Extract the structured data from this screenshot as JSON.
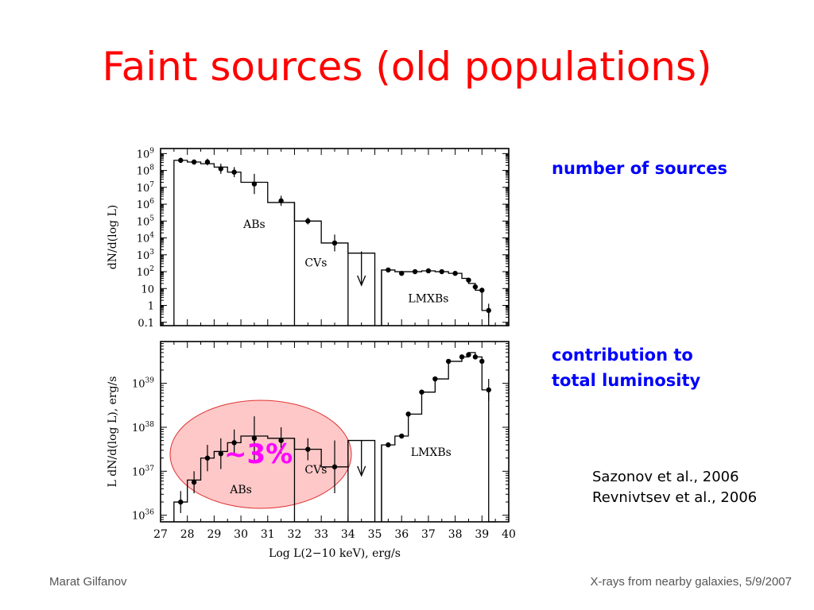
{
  "slide": {
    "title": "Faint sources (old populations)",
    "annotation_top": "number of sources",
    "annotation_bottom_line1": "contribution to",
    "annotation_bottom_line2": "total luminosity",
    "ref_line1": "Sazonov et al., 2006",
    "ref_line2": "Revnivtsev et al., 2006",
    "footer_left": "Marat Gilfanov",
    "footer_right": "X-rays from nearby galaxies, 5/9/2007",
    "highlight_label": "~3%"
  },
  "colors": {
    "title": "#ff0000",
    "annotation": "#0000ff",
    "highlight": "#ff00ff",
    "ellipse_fill": "#ffc8c8",
    "ellipse_stroke": "#e03030"
  },
  "chart_data": [
    {
      "type": "line",
      "ylabel": "dN/d(log L)",
      "xlim": [
        27,
        40
      ],
      "y_scale": "log",
      "ylim_log10": [
        -1.2,
        9.3
      ],
      "y_ticks": [
        {
          "v": 9,
          "label": "10",
          "sup": "9"
        },
        {
          "v": 8,
          "label": "10",
          "sup": "8"
        },
        {
          "v": 7,
          "label": "10",
          "sup": "7"
        },
        {
          "v": 6,
          "label": "10",
          "sup": "6"
        },
        {
          "v": 5,
          "label": "10",
          "sup": "5"
        },
        {
          "v": 4,
          "label": "10",
          "sup": "4"
        },
        {
          "v": 3,
          "label": "10",
          "sup": "3"
        },
        {
          "v": 2,
          "label": "10",
          "sup": "2"
        },
        {
          "v": 1,
          "label": "10",
          "sup": ""
        },
        {
          "v": 0,
          "label": "1",
          "sup": ""
        },
        {
          "v": -1,
          "label": "0.1",
          "sup": ""
        }
      ],
      "labels": [
        {
          "text": "ABs",
          "x": 30.5,
          "y": 4.6
        },
        {
          "text": "CVs",
          "x": 32.8,
          "y": 2.3
        },
        {
          "text": "LMXBs",
          "x": 37.0,
          "y": 0.2
        }
      ],
      "histogram": [
        {
          "x0": 27.5,
          "x1": 28.0,
          "y": 8.6
        },
        {
          "x0": 28.0,
          "x1": 28.5,
          "y": 8.5
        },
        {
          "x0": 28.5,
          "x1": 29.0,
          "y": 8.4
        },
        {
          "x0": 29.0,
          "x1": 29.5,
          "y": 8.2
        },
        {
          "x0": 29.5,
          "x1": 30.0,
          "y": 7.9
        },
        {
          "x0": 30.0,
          "x1": 31.0,
          "y": 7.3
        },
        {
          "x0": 31.0,
          "x1": 32.0,
          "y": 6.1
        },
        {
          "x0": 32.0,
          "x1": 33.0,
          "y": 5.0
        },
        {
          "x0": 33.0,
          "x1": 34.0,
          "y": 3.7
        },
        {
          "x0": 34.0,
          "x1": 35.0,
          "y": 3.1
        },
        {
          "x0": 35.25,
          "x1": 35.75,
          "y": 2.1
        },
        {
          "x0": 35.75,
          "x1": 36.25,
          "y": 2.0
        },
        {
          "x0": 36.25,
          "x1": 36.75,
          "y": 2.0
        },
        {
          "x0": 36.75,
          "x1": 37.25,
          "y": 2.05
        },
        {
          "x0": 37.25,
          "x1": 37.75,
          "y": 2.0
        },
        {
          "x0": 37.75,
          "x1": 38.25,
          "y": 1.9
        },
        {
          "x0": 38.25,
          "x1": 38.5,
          "y": 1.6
        },
        {
          "x0": 38.5,
          "x1": 38.75,
          "y": 1.3
        },
        {
          "x0": 38.75,
          "x1": 39.0,
          "y": 0.9
        },
        {
          "x0": 39.0,
          "x1": 39.25,
          "y": -0.3
        },
        {
          "x0": 39.25,
          "x1": 39.5,
          "y": -1.2
        }
      ],
      "histogram_drops": [
        32.0,
        34.0,
        35.25
      ],
      "series": [
        {
          "x": 27.75,
          "y": 8.6,
          "err": 0.15
        },
        {
          "x": 28.25,
          "y": 8.5,
          "err": 0.15
        },
        {
          "x": 28.75,
          "y": 8.5,
          "err": 0.2
        },
        {
          "x": 29.25,
          "y": 8.1,
          "err": 0.3
        },
        {
          "x": 29.75,
          "y": 7.9,
          "err": 0.3
        },
        {
          "x": 30.5,
          "y": 7.2,
          "err": 0.6
        },
        {
          "x": 31.5,
          "y": 6.2,
          "err": 0.3
        },
        {
          "x": 32.5,
          "y": 5.0,
          "err": 0.2
        },
        {
          "x": 33.5,
          "y": 3.7,
          "err": 0.5
        },
        {
          "x": 35.5,
          "y": 2.1,
          "err": 0.1
        },
        {
          "x": 36.0,
          "y": 1.9,
          "err": 0.1
        },
        {
          "x": 36.5,
          "y": 2.0,
          "err": 0.1
        },
        {
          "x": 37.0,
          "y": 2.05,
          "err": 0.1
        },
        {
          "x": 37.5,
          "y": 2.0,
          "err": 0.1
        },
        {
          "x": 38.0,
          "y": 1.9,
          "err": 0.1
        },
        {
          "x": 38.5,
          "y": 1.5,
          "err": 0.1
        },
        {
          "x": 38.75,
          "y": 1.1,
          "err": 0.15
        },
        {
          "x": 39.0,
          "y": 0.9,
          "err": 0.15
        },
        {
          "x": 39.25,
          "y": -0.3,
          "err": 0.4
        }
      ],
      "upper_limit": {
        "x": 34.5,
        "y": 3.2,
        "y_to": 1.2
      }
    },
    {
      "type": "line",
      "ylabel": "L dN/d(log L), erg/s",
      "xlabel": "Log L(2−10 keV), erg/s",
      "xlim": [
        27,
        40
      ],
      "x_ticks": [
        27,
        28,
        29,
        30,
        31,
        32,
        33,
        34,
        35,
        36,
        37,
        38,
        39,
        40
      ],
      "y_scale": "log",
      "ylim_log10": [
        35.85,
        39.95
      ],
      "y_ticks": [
        {
          "v": 39,
          "label": "10",
          "sup": "39"
        },
        {
          "v": 38,
          "label": "10",
          "sup": "38"
        },
        {
          "v": 37,
          "label": "10",
          "sup": "37"
        },
        {
          "v": 36,
          "label": "10",
          "sup": "36"
        }
      ],
      "labels": [
        {
          "text": "CVs",
          "x": 32.8,
          "y": 36.95
        },
        {
          "text": "ABs",
          "x": 30.0,
          "y": 36.5
        },
        {
          "text": "LMXBs",
          "x": 37.1,
          "y": 37.35
        }
      ],
      "histogram": [
        {
          "x0": 27.5,
          "x1": 28.0,
          "y": 36.3
        },
        {
          "x0": 28.0,
          "x1": 28.5,
          "y": 36.8
        },
        {
          "x0": 28.5,
          "x1": 29.0,
          "y": 37.3
        },
        {
          "x0": 29.0,
          "x1": 29.5,
          "y": 37.45
        },
        {
          "x0": 29.5,
          "x1": 30.0,
          "y": 37.65
        },
        {
          "x0": 30.0,
          "x1": 31.0,
          "y": 37.8
        },
        {
          "x0": 31.0,
          "x1": 32.0,
          "y": 37.75
        },
        {
          "x0": 32.0,
          "x1": 33.0,
          "y": 37.5
        },
        {
          "x0": 33.0,
          "x1": 34.0,
          "y": 37.1
        },
        {
          "x0": 34.0,
          "x1": 35.0,
          "y": 37.7
        },
        {
          "x0": 35.25,
          "x1": 35.75,
          "y": 37.6
        },
        {
          "x0": 35.75,
          "x1": 36.25,
          "y": 37.8
        },
        {
          "x0": 36.25,
          "x1": 36.75,
          "y": 38.3
        },
        {
          "x0": 36.75,
          "x1": 37.25,
          "y": 38.8
        },
        {
          "x0": 37.25,
          "x1": 37.75,
          "y": 39.1
        },
        {
          "x0": 37.75,
          "x1": 38.25,
          "y": 39.5
        },
        {
          "x0": 38.25,
          "x1": 38.5,
          "y": 39.6
        },
        {
          "x0": 38.5,
          "x1": 38.75,
          "y": 39.7
        },
        {
          "x0": 38.75,
          "x1": 39.0,
          "y": 39.6
        },
        {
          "x0": 39.0,
          "x1": 39.25,
          "y": 38.85
        },
        {
          "x0": 39.25,
          "x1": 39.5,
          "y": 35.85
        }
      ],
      "histogram_drops": [
        32.0,
        34.0,
        35.25
      ],
      "series": [
        {
          "x": 27.75,
          "y": 36.3,
          "err": 0.25
        },
        {
          "x": 28.25,
          "y": 36.75,
          "err": 0.25
        },
        {
          "x": 28.75,
          "y": 37.3,
          "err": 0.3
        },
        {
          "x": 29.25,
          "y": 37.4,
          "err": 0.35
        },
        {
          "x": 29.75,
          "y": 37.65,
          "err": 0.3
        },
        {
          "x": 30.5,
          "y": 37.75,
          "err": 0.5
        },
        {
          "x": 31.5,
          "y": 37.7,
          "err": 0.3
        },
        {
          "x": 32.5,
          "y": 37.5,
          "err": 0.25
        },
        {
          "x": 33.5,
          "y": 37.1,
          "err": 0.6
        },
        {
          "x": 35.5,
          "y": 37.6,
          "err": 0.05
        },
        {
          "x": 36.0,
          "y": 37.8,
          "err": 0.05
        },
        {
          "x": 36.25,
          "y": 38.3,
          "err": 0.05
        },
        {
          "x": 36.75,
          "y": 38.8,
          "err": 0.05
        },
        {
          "x": 37.25,
          "y": 39.1,
          "err": 0.05
        },
        {
          "x": 37.75,
          "y": 39.5,
          "err": 0.05
        },
        {
          "x": 38.25,
          "y": 39.6,
          "err": 0.05
        },
        {
          "x": 38.5,
          "y": 39.65,
          "err": 0.05
        },
        {
          "x": 38.75,
          "y": 39.6,
          "err": 0.05
        },
        {
          "x": 39.0,
          "y": 39.5,
          "err": 0.05
        },
        {
          "x": 39.25,
          "y": 38.85,
          "err": 0.25
        }
      ],
      "upper_limit": {
        "x": 34.5,
        "y": 37.7,
        "y_to": 36.9
      }
    }
  ]
}
